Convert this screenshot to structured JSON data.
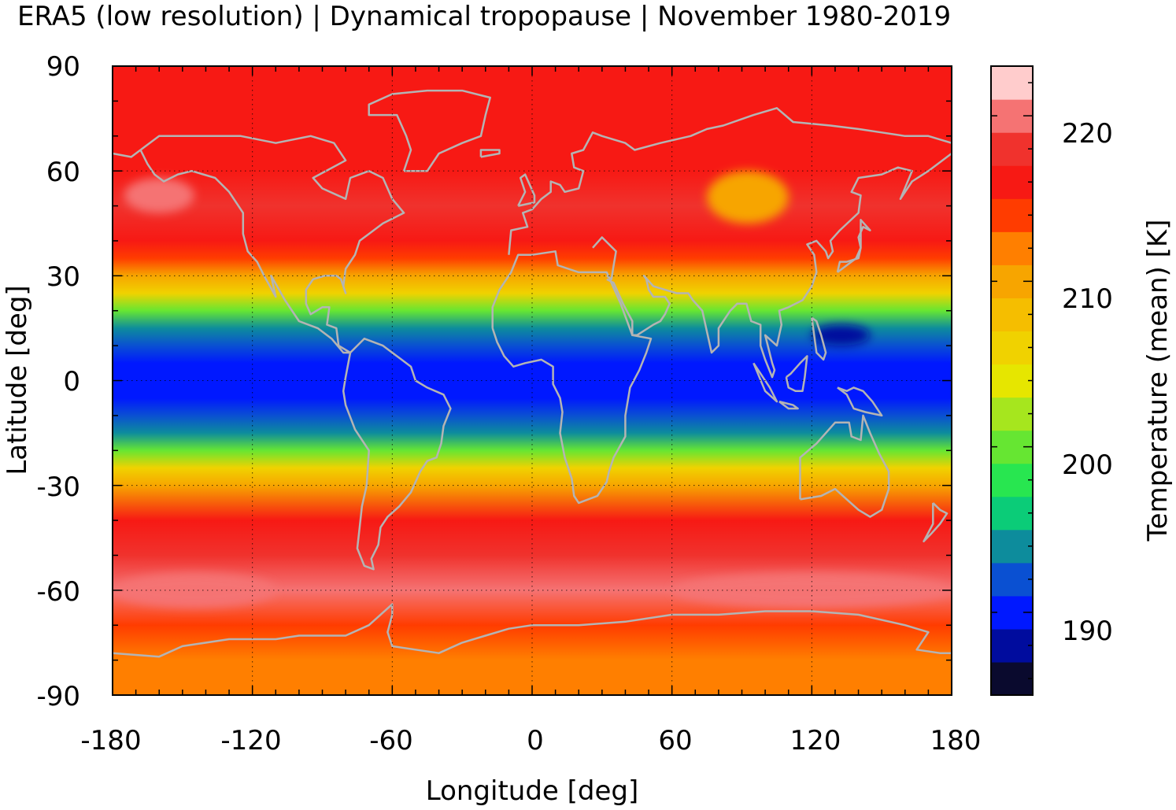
{
  "chart_data": {
    "type": "heatmap",
    "title": "ERA5 (low resolution) | Dynamical tropopause | November 1980-2019",
    "xlabel": "Longitude [deg]",
    "ylabel": "Latitude [deg]",
    "colorbar_label": "Temperature (mean) [K]",
    "xlim": [
      -180,
      180
    ],
    "ylim": [
      -90,
      90
    ],
    "x_ticks": [
      "-180",
      "-120",
      "-60",
      "0",
      "60",
      "120",
      "180"
    ],
    "y_ticks": [
      "90",
      "60",
      "30",
      "0",
      "-30",
      "-60",
      "-90"
    ],
    "colorbar_ticks": [
      "220",
      "210",
      "200",
      "190"
    ],
    "colorbar_range": [
      185,
      223
    ],
    "grid": true,
    "colorbar_colors": [
      "#0a0a2e",
      "#000c9e",
      "#0018ff",
      "#0a50d2",
      "#0d8c9c",
      "#0bcc78",
      "#28e650",
      "#66e632",
      "#a6e61e",
      "#e6e600",
      "#f0d200",
      "#f5be00",
      "#f7a500",
      "#ff7f00",
      "#ff3c00",
      "#f71914",
      "#f0322d",
      "#f57373",
      "#ffcccc"
    ],
    "latitude_profile": {
      "lat": [
        -90,
        -80,
        -70,
        -60,
        -50,
        -40,
        -30,
        -25,
        -20,
        -15,
        -10,
        -5,
        0,
        5,
        10,
        15,
        20,
        25,
        30,
        35,
        40,
        50,
        60,
        70,
        80,
        90
      ],
      "temperature_mean": [
        211,
        211,
        213,
        219,
        217,
        216,
        210,
        205,
        199,
        194,
        191,
        190,
        190,
        190,
        191,
        194,
        199,
        205,
        210,
        214,
        216,
        217,
        215,
        215,
        216,
        215
      ]
    },
    "features": [
      {
        "name": "South Pacific maximum",
        "lon": [
          -180,
          -110
        ],
        "lat": [
          -65,
          -55
        ],
        "temperature_mean": 220
      },
      {
        "name": "South Indian Ocean maximum",
        "lon": [
          60,
          180
        ],
        "lat": [
          -65,
          -55
        ],
        "temperature_mean": 220
      },
      {
        "name": "North Pacific maximum",
        "lon": [
          -175,
          -145
        ],
        "lat": [
          48,
          58
        ],
        "temperature_mean": 220
      },
      {
        "name": "Siberian minimum",
        "lon": [
          75,
          110
        ],
        "lat": [
          45,
          60
        ],
        "temperature_mean": 210
      },
      {
        "name": "West Pacific minimum",
        "lon": [
          120,
          145
        ],
        "lat": [
          10,
          16
        ],
        "temperature_mean": 187
      }
    ]
  }
}
